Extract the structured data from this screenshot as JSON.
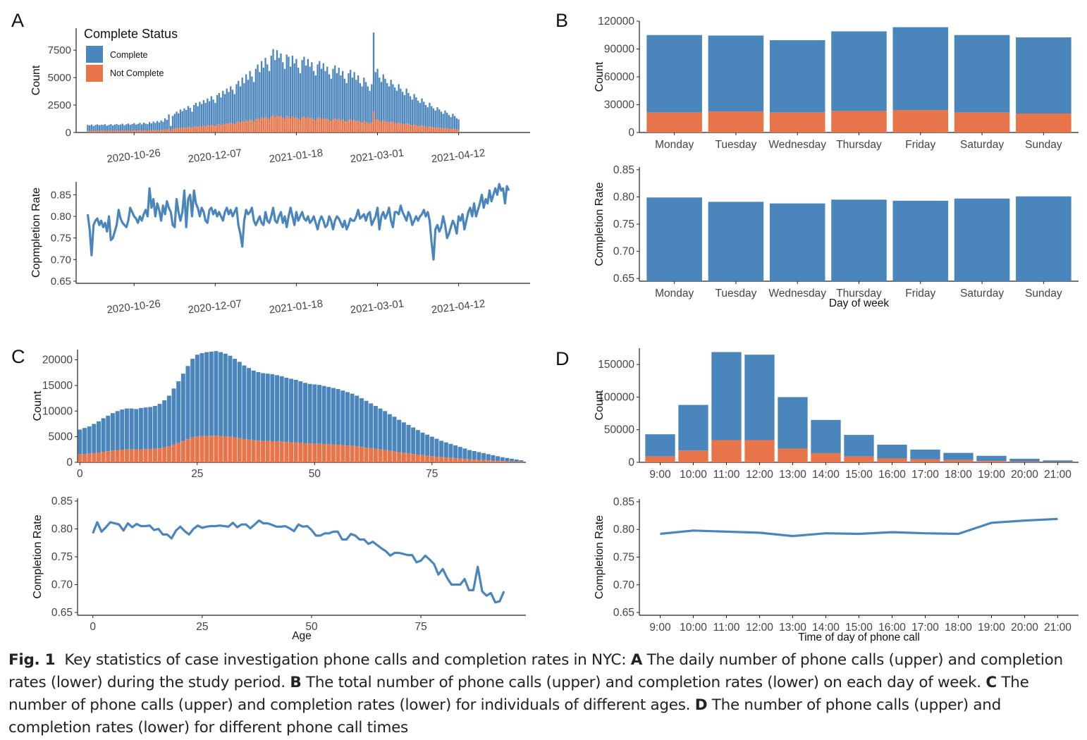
{
  "colors": {
    "complete": "#4a86bb",
    "not_complete": "#e8744a",
    "line": "#4a86bb",
    "axis": "#222222",
    "tick_text": "#444444"
  },
  "panel_labels": {
    "A": "A",
    "B": "B",
    "C": "C",
    "D": "D"
  },
  "caption": {
    "figure_label": "Fig. 1",
    "intro": "Key statistics of case investigation phone calls and completion rates in NYC:",
    "parts": [
      {
        "label": "A",
        "text": "The daily number of phone calls (upper) and completion rates (lower) during the study period."
      },
      {
        "label": "B",
        "text": "The total number of phone calls (upper) and completion rates (lower) on each day of week."
      },
      {
        "label": "C",
        "text": "The number of phone calls (upper) and completion rates (lower) for individuals of different ages."
      },
      {
        "label": "D",
        "text": "The number of phone calls (upper) and completion rates (lower) for different phone call times"
      }
    ]
  },
  "chart_data": [
    {
      "id": "A_upper",
      "panel": "A",
      "type": "bar",
      "stacked": true,
      "ylabel": "Count",
      "ylim": [
        0,
        9500
      ],
      "yticks": [
        0,
        2500,
        5000,
        7500
      ],
      "xlim": [
        "2020-09-26",
        "2021-05-19"
      ],
      "xticks": [
        "2020-10-26",
        "2020-12-07",
        "2021-01-18",
        "2021-03-01",
        "2021-04-12"
      ],
      "legend": {
        "title": "Complete Status",
        "position": "top-left",
        "entries": [
          "Complete",
          "Not Complete"
        ]
      },
      "x_start": "2020-10-02",
      "total": [
        700,
        650,
        720,
        600,
        680,
        740,
        660,
        710,
        690,
        750,
        620,
        700,
        760,
        640,
        720,
        780,
        690,
        730,
        800,
        660,
        750,
        820,
        700,
        770,
        850,
        720,
        790,
        880,
        740,
        900,
        810,
        760,
        950,
        830,
        1000,
        880,
        1050,
        920,
        1100,
        980,
        1300,
        1150,
        1650,
        600,
        1500,
        1700,
        1900,
        1750,
        2100,
        1950,
        2200,
        2050,
        2400,
        2250,
        1900,
        2500,
        2700,
        2400,
        2800,
        2600,
        2950,
        2700,
        3100,
        2850,
        3300,
        3000,
        2700,
        3400,
        3600,
        3200,
        3800,
        3500,
        4000,
        3700,
        4200,
        3900,
        3500,
        4400,
        4700,
        4200,
        5000,
        4500,
        5300,
        4800,
        5600,
        5100,
        4600,
        5800,
        6200,
        5500,
        6500,
        5900,
        6800,
        6200,
        5600,
        7000,
        7600,
        6600,
        7500,
        6800,
        7200,
        6400,
        5800,
        7100,
        6900,
        6000,
        7000,
        6300,
        6700,
        5900,
        5400,
        6600,
        6900,
        6100,
        6700,
        6000,
        6400,
        5600,
        5200,
        6200,
        6500,
        5800,
        6300,
        5600,
        6000,
        5300,
        4900,
        5800,
        6100,
        5400,
        5900,
        5200,
        5600,
        4900,
        4500,
        5400,
        5700,
        5000,
        5500,
        4800,
        5200,
        4500,
        4200,
        5000,
        4600,
        4200,
        3800,
        4400,
        9100,
        5500,
        5800,
        5000,
        4600,
        5300,
        4900,
        4500,
        4200,
        4800,
        4400,
        4100,
        3800,
        4400,
        4000,
        3700,
        3400,
        4000,
        3600,
        3300,
        3000,
        3500,
        3200,
        2900,
        2700,
        3100,
        2800,
        2500,
        2300,
        2700,
        2400,
        2200,
        2000,
        2300,
        2100,
        1900,
        1700,
        2000,
        1800,
        1600,
        1400,
        1700,
        1500,
        1300,
        1200
      ],
      "not_complete_ratio": 0.21,
      "value_note": "series are daily stacked bars; Not Complete = total * not_complete_ratio approximately",
      "series": [
        {
          "name": "Complete"
        },
        {
          "name": "Not Complete"
        }
      ]
    },
    {
      "id": "A_lower",
      "panel": "A",
      "type": "line",
      "ylabel": "Copmpletion Rate",
      "ylim": [
        0.645,
        0.88
      ],
      "yticks": [
        0.65,
        0.7,
        0.75,
        0.8,
        0.85
      ],
      "xlim": [
        "2020-09-26",
        "2021-05-19"
      ],
      "xticks": [
        "2020-10-26",
        "2020-12-07",
        "2021-01-18",
        "2021-03-01",
        "2021-04-12"
      ],
      "x_start": "2020-10-02",
      "values": [
        0.805,
        0.77,
        0.71,
        0.78,
        0.79,
        0.795,
        0.78,
        0.79,
        0.775,
        0.785,
        0.765,
        0.8,
        0.745,
        0.75,
        0.765,
        0.78,
        0.815,
        0.795,
        0.785,
        0.78,
        0.775,
        0.79,
        0.82,
        0.81,
        0.8,
        0.795,
        0.785,
        0.8,
        0.79,
        0.805,
        0.815,
        0.8,
        0.865,
        0.82,
        0.84,
        0.8,
        0.83,
        0.815,
        0.79,
        0.825,
        0.805,
        0.835,
        0.82,
        0.81,
        0.78,
        0.775,
        0.84,
        0.81,
        0.79,
        0.81,
        0.86,
        0.775,
        0.84,
        0.85,
        0.8,
        0.86,
        0.83,
        0.82,
        0.8,
        0.82,
        0.81,
        0.79,
        0.785,
        0.815,
        0.82,
        0.805,
        0.815,
        0.8,
        0.81,
        0.8,
        0.79,
        0.81,
        0.82,
        0.805,
        0.815,
        0.8,
        0.81,
        0.82,
        0.78,
        0.76,
        0.73,
        0.79,
        0.815,
        0.805,
        0.81,
        0.82,
        0.79,
        0.78,
        0.79,
        0.8,
        0.785,
        0.78,
        0.81,
        0.79,
        0.785,
        0.8,
        0.82,
        0.79,
        0.785,
        0.8,
        0.81,
        0.785,
        0.8,
        0.775,
        0.8,
        0.82,
        0.8,
        0.78,
        0.81,
        0.79,
        0.8,
        0.81,
        0.795,
        0.79,
        0.8,
        0.785,
        0.79,
        0.8,
        0.785,
        0.77,
        0.79,
        0.8,
        0.79,
        0.775,
        0.78,
        0.8,
        0.79,
        0.77,
        0.79,
        0.8,
        0.795,
        0.785,
        0.775,
        0.79,
        0.77,
        0.78,
        0.795,
        0.79,
        0.79,
        0.8,
        0.815,
        0.795,
        0.8,
        0.805,
        0.79,
        0.805,
        0.81,
        0.78,
        0.79,
        0.8,
        0.82,
        0.77,
        0.8,
        0.81,
        0.795,
        0.805,
        0.82,
        0.79,
        0.775,
        0.81,
        0.81,
        0.805,
        0.825,
        0.81,
        0.8,
        0.79,
        0.81,
        0.8,
        0.78,
        0.79,
        0.8,
        0.79,
        0.8,
        0.805,
        0.815,
        0.8,
        0.81,
        0.79,
        0.74,
        0.7,
        0.77,
        0.78,
        0.765,
        0.775,
        0.8,
        0.78,
        0.75,
        0.76,
        0.775,
        0.79,
        0.78,
        0.76,
        0.8,
        0.79,
        0.805,
        0.77,
        0.79,
        0.81,
        0.82,
        0.8,
        0.83,
        0.8,
        0.815,
        0.83,
        0.85,
        0.82,
        0.84,
        0.83,
        0.86,
        0.835,
        0.85,
        0.865,
        0.85,
        0.875,
        0.86,
        0.865,
        0.83,
        0.87,
        0.86
      ]
    },
    {
      "id": "B_upper",
      "panel": "B",
      "type": "bar",
      "stacked": true,
      "ylabel": "Count",
      "ylim": [
        0,
        120000
      ],
      "yticks": [
        0,
        30000,
        60000,
        90000,
        120000
      ],
      "categories": [
        "Monday",
        "Tuesday",
        "Wednesday",
        "Thursday",
        "Friday",
        "Saturday",
        "Sunday"
      ],
      "series": [
        {
          "name": "Complete",
          "values": [
            83500,
            82000,
            78000,
            86000,
            89500,
            83500,
            82000
          ]
        },
        {
          "name": "Not Complete",
          "values": [
            21500,
            22500,
            21500,
            23000,
            24000,
            21500,
            20500
          ]
        }
      ]
    },
    {
      "id": "B_lower",
      "panel": "B",
      "type": "bar",
      "ylabel": "Completion Rate",
      "xlabel": "Day of week",
      "ylim": [
        0.645,
        0.855
      ],
      "yticks": [
        0.65,
        0.7,
        0.75,
        0.8,
        0.85
      ],
      "categories": [
        "Monday",
        "Tuesday",
        "Wednesday",
        "Thursday",
        "Friday",
        "Saturday",
        "Sunday"
      ],
      "values": [
        0.799,
        0.791,
        0.788,
        0.795,
        0.793,
        0.797,
        0.801
      ]
    },
    {
      "id": "C_upper",
      "panel": "C",
      "type": "bar",
      "stacked": true,
      "ylabel": "Count",
      "xlim": [
        -0.5,
        95
      ],
      "ylim": [
        0,
        22000
      ],
      "yticks": [
        0,
        5000,
        10000,
        15000,
        20000
      ],
      "xticks": [
        0,
        25,
        50,
        75
      ],
      "x_start": 0,
      "total": [
        6400,
        6700,
        7000,
        7500,
        8000,
        8600,
        9100,
        9600,
        10000,
        10300,
        10500,
        10500,
        10400,
        10600,
        10700,
        10800,
        11000,
        11400,
        12100,
        13000,
        14400,
        15800,
        17300,
        18800,
        20200,
        21000,
        21300,
        21500,
        21600,
        21700,
        21500,
        21200,
        20800,
        20200,
        19600,
        18900,
        18400,
        17900,
        17600,
        17400,
        17300,
        17200,
        17000,
        16800,
        16500,
        16300,
        16100,
        15800,
        15500,
        15300,
        15200,
        15100,
        14900,
        14700,
        14500,
        14300,
        14000,
        13700,
        13400,
        13000,
        12500,
        12000,
        11500,
        11000,
        10500,
        10000,
        9400,
        8900,
        8300,
        7800,
        7300,
        6800,
        6300,
        5800,
        5400,
        5000,
        4600,
        4200,
        3900,
        3600,
        3300,
        3000,
        2700,
        2400,
        2200,
        2000,
        1800,
        1600,
        1400,
        1200,
        1000,
        850,
        700,
        550,
        400
      ],
      "not_complete_ratio": 0.24,
      "series": [
        {
          "name": "Complete"
        },
        {
          "name": "Not Complete"
        }
      ]
    },
    {
      "id": "C_lower",
      "panel": "C",
      "type": "line",
      "ylabel": "Completion Rate",
      "xlabel": "Age",
      "xlim": [
        -3.5,
        99
      ],
      "ylim": [
        0.645,
        0.855
      ],
      "yticks": [
        0.65,
        0.7,
        0.75,
        0.8,
        0.85
      ],
      "xticks": [
        0,
        25,
        50,
        75
      ],
      "x_start": 0,
      "values": [
        0.792,
        0.812,
        0.795,
        0.803,
        0.812,
        0.81,
        0.808,
        0.797,
        0.81,
        0.803,
        0.809,
        0.805,
        0.805,
        0.806,
        0.798,
        0.8,
        0.79,
        0.79,
        0.783,
        0.797,
        0.804,
        0.796,
        0.79,
        0.8,
        0.806,
        0.802,
        0.804,
        0.805,
        0.805,
        0.806,
        0.805,
        0.804,
        0.811,
        0.803,
        0.808,
        0.808,
        0.801,
        0.808,
        0.815,
        0.81,
        0.81,
        0.807,
        0.804,
        0.804,
        0.805,
        0.801,
        0.796,
        0.808,
        0.804,
        0.805,
        0.798,
        0.788,
        0.788,
        0.792,
        0.792,
        0.795,
        0.795,
        0.781,
        0.781,
        0.791,
        0.788,
        0.781,
        0.781,
        0.773,
        0.777,
        0.771,
        0.765,
        0.76,
        0.752,
        0.757,
        0.757,
        0.755,
        0.753,
        0.753,
        0.74,
        0.743,
        0.752,
        0.745,
        0.737,
        0.718,
        0.728,
        0.712,
        0.7,
        0.7,
        0.7,
        0.71,
        0.69,
        0.69,
        0.732,
        0.688,
        0.68,
        0.685,
        0.668,
        0.67,
        0.688
      ],
      "values_note": "x = age 0..94"
    },
    {
      "id": "D_upper",
      "panel": "D",
      "type": "bar",
      "stacked": true,
      "ylabel": "Count",
      "ylim": [
        0,
        175000
      ],
      "yticks": [
        0,
        50000,
        100000,
        150000
      ],
      "categories": [
        "9:00",
        "10:00",
        "11:00",
        "12:00",
        "13:00",
        "14:00",
        "15:00",
        "16:00",
        "17:00",
        "18:00",
        "19:00",
        "20:00",
        "21:00"
      ],
      "series": [
        {
          "name": "Complete",
          "values": [
            34000,
            70000,
            135000,
            131000,
            79000,
            51000,
            33000,
            21000,
            15000,
            11000,
            8000,
            4500,
            2500
          ]
        },
        {
          "name": "Not Complete",
          "values": [
            9000,
            18000,
            34000,
            34000,
            21000,
            14000,
            9000,
            6000,
            4500,
            3500,
            2000,
            1000,
            500
          ]
        }
      ]
    },
    {
      "id": "D_lower",
      "panel": "D",
      "type": "line",
      "ylabel": "Completion Rate",
      "xlabel": "Time of day of phone call",
      "ylim": [
        0.645,
        0.855
      ],
      "yticks": [
        0.65,
        0.7,
        0.75,
        0.8,
        0.85
      ],
      "categories": [
        "9:00",
        "10:00",
        "11:00",
        "12:00",
        "13:00",
        "14:00",
        "15:00",
        "16:00",
        "17:00",
        "18:00",
        "19:00",
        "20:00",
        "21:00"
      ],
      "values": [
        0.792,
        0.798,
        0.796,
        0.794,
        0.788,
        0.793,
        0.792,
        0.795,
        0.793,
        0.792,
        0.812,
        0.816,
        0.819
      ]
    }
  ]
}
